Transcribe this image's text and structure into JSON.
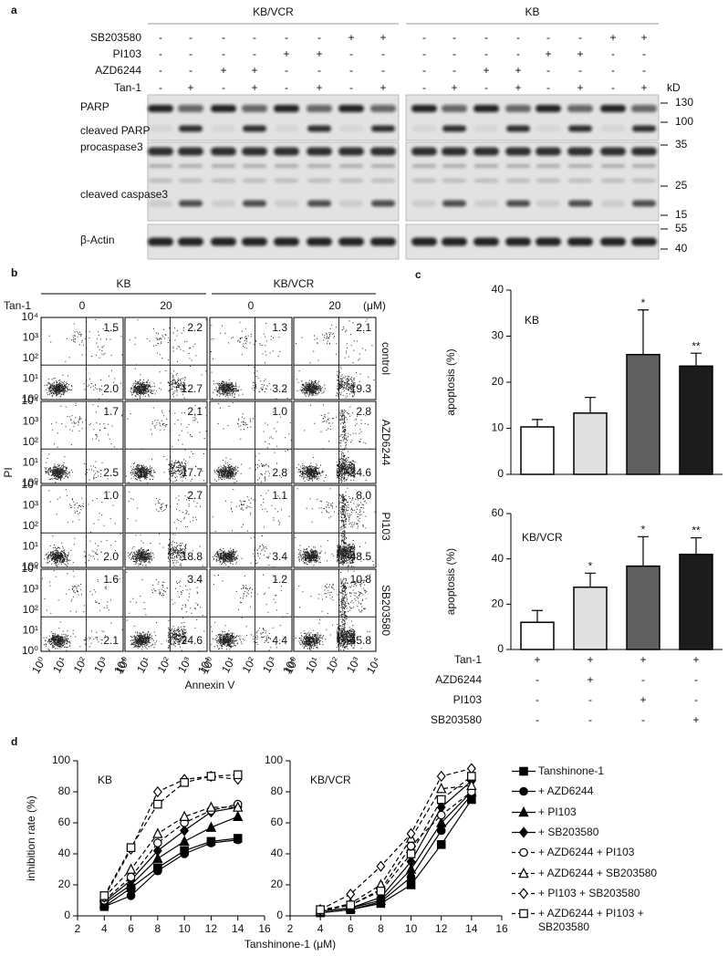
{
  "panel_a": {
    "label": "a",
    "groups": [
      "KB/VCR",
      "KB"
    ],
    "rows": [
      {
        "name": "SB203580",
        "signs": [
          "-",
          "-",
          "-",
          "-",
          "-",
          "-",
          "+",
          "+",
          "-",
          "-",
          "-",
          "-",
          "-",
          "-",
          "+",
          "+"
        ]
      },
      {
        "name": "PI103",
        "signs": [
          "-",
          "-",
          "-",
          "-",
          "+",
          "+",
          "-",
          "-",
          "-",
          "-",
          "-",
          "-",
          "+",
          "+",
          "-",
          "-"
        ]
      },
      {
        "name": "AZD6244",
        "signs": [
          "-",
          "-",
          "+",
          "+",
          "-",
          "-",
          "-",
          "-",
          "-",
          "-",
          "+",
          "+",
          "-",
          "-",
          "-",
          "-"
        ]
      },
      {
        "name": "Tan-1",
        "signs": [
          "-",
          "+",
          "-",
          "+",
          "-",
          "+",
          "-",
          "+",
          "-",
          "+",
          "-",
          "+",
          "-",
          "+",
          "-",
          "+"
        ]
      }
    ],
    "unit": "kD",
    "proteins": [
      "PARP",
      "cleaved PARP",
      "procaspase3",
      "cleaved caspase3",
      "β-Actin"
    ],
    "markers": [
      130,
      100,
      35,
      25,
      15,
      55,
      40
    ]
  },
  "panel_b": {
    "label": "b",
    "groups": [
      "KB",
      "KB/VCR"
    ],
    "treatment": "Tan-1",
    "doses": [
      "0",
      "20",
      "0",
      "20"
    ],
    "unit": "(μM)",
    "conditions": [
      "control",
      "AZD6244",
      "PI103",
      "SB203580"
    ],
    "ylabel": "PI",
    "xlabel": "Annexin V",
    "ticks": [
      "10⁰",
      "10¹",
      "10²",
      "10³",
      "10⁴"
    ],
    "quadrants": [
      [
        {
          "upper_right": "1.5",
          "lower_right": "2.0"
        },
        {
          "upper_right": "2.2",
          "lower_right": "12.7"
        },
        {
          "upper_right": "1.3",
          "lower_right": "3.2"
        },
        {
          "upper_right": "2.1",
          "lower_right": "19.3"
        }
      ],
      [
        {
          "upper_right": "1.7",
          "lower_right": "2.5"
        },
        {
          "upper_right": "2.1",
          "lower_right": "17.7"
        },
        {
          "upper_right": "1.0",
          "lower_right": "2.8"
        },
        {
          "upper_right": "2.8",
          "lower_right": "34.6"
        }
      ],
      [
        {
          "upper_right": "1.0",
          "lower_right": "2.0"
        },
        {
          "upper_right": "2.7",
          "lower_right": "18.8"
        },
        {
          "upper_right": "1.1",
          "lower_right": "3.4"
        },
        {
          "upper_right": "8.0",
          "lower_right": "48.5"
        }
      ],
      [
        {
          "upper_right": "1.6",
          "lower_right": "2.1"
        },
        {
          "upper_right": "3.4",
          "lower_right": "24.6"
        },
        {
          "upper_right": "1.2",
          "lower_right": "4.4"
        },
        {
          "upper_right": "10.8",
          "lower_right": "45.8"
        }
      ]
    ]
  },
  "panel_c": {
    "label": "c"
  },
  "panel_d": {
    "label": "d"
  },
  "chart_data": [
    {
      "type": "bar",
      "title": "KB",
      "ylabel": "apoptosis (%)",
      "values": [
        10.3,
        13.3,
        26,
        23.5
      ],
      "errors": [
        1.6,
        3.4,
        9.7,
        2.8
      ],
      "significance": [
        null,
        null,
        "*",
        "**"
      ],
      "colors": [
        "#ffffff",
        "#e0e0e0",
        "#606060",
        "#1c1c1c"
      ],
      "ylim": [
        0,
        40
      ],
      "yticks": [
        0,
        10,
        20,
        30,
        40
      ]
    },
    {
      "type": "bar",
      "title": "KB/VCR",
      "ylabel": "apoptosis (%)",
      "values": [
        12,
        27.5,
        36.8,
        42
      ],
      "errors": [
        5.2,
        6.2,
        13,
        7.3
      ],
      "significance": [
        null,
        "*",
        "*",
        "**"
      ],
      "colors": [
        "#ffffff",
        "#e0e0e0",
        "#606060",
        "#1c1c1c"
      ],
      "ylim": [
        0,
        60
      ],
      "yticks": [
        0,
        20,
        40,
        60
      ],
      "treatments": [
        {
          "name": "Tan-1",
          "signs": [
            "+",
            "+",
            "+",
            "+"
          ]
        },
        {
          "name": "AZD6244",
          "signs": [
            "-",
            "+",
            "-",
            "-"
          ]
        },
        {
          "name": "PI103",
          "signs": [
            "-",
            "-",
            "+",
            "-"
          ]
        },
        {
          "name": "SB203580",
          "signs": [
            "-",
            "-",
            "-",
            "+"
          ]
        }
      ]
    },
    {
      "type": "line",
      "title": "KB",
      "ylabel": "inhibition rate (%)",
      "xlabel": "Tanshinone-1 (μM)",
      "x": [
        4,
        6,
        8,
        10,
        12,
        14
      ],
      "xlim": [
        2,
        16
      ],
      "xticks": [
        2,
        4,
        6,
        8,
        10,
        12,
        14,
        16
      ],
      "ylim": [
        0,
        100
      ],
      "yticks": [
        0,
        20,
        40,
        60,
        80,
        100
      ],
      "series": [
        {
          "color": "#000000",
          "marker": "square",
          "filled": true,
          "dashed": false,
          "values": [
            6,
            18,
            31,
            42,
            48,
            50
          ]
        },
        {
          "color": "#000000",
          "marker": "circle",
          "filled": true,
          "dashed": false,
          "values": [
            6,
            13,
            29,
            40,
            47,
            49
          ]
        },
        {
          "color": "#000000",
          "marker": "triangle",
          "filled": true,
          "dashed": false,
          "values": [
            8,
            20,
            37,
            48,
            57,
            64
          ]
        },
        {
          "color": "#000000",
          "marker": "diamond",
          "filled": true,
          "dashed": false,
          "values": [
            9,
            23,
            42,
            55,
            67,
            70
          ]
        },
        {
          "color": "#000000",
          "marker": "circle",
          "filled": false,
          "dashed": true,
          "values": [
            10,
            25,
            47,
            60,
            68,
            72
          ]
        },
        {
          "color": "#000000",
          "marker": "triangle",
          "filled": false,
          "dashed": true,
          "values": [
            12,
            30,
            53,
            64,
            70,
            70
          ]
        },
        {
          "color": "#000000",
          "marker": "diamond",
          "filled": false,
          "dashed": true,
          "values": [
            12,
            43,
            80,
            88,
            90,
            88
          ]
        },
        {
          "color": "#000000",
          "marker": "square",
          "filled": false,
          "dashed": true,
          "values": [
            13,
            44,
            72,
            86,
            90,
            91
          ]
        }
      ]
    },
    {
      "type": "line",
      "title": "KB/VCR",
      "legend": "right",
      "x": [
        4,
        6,
        8,
        10,
        12,
        14
      ],
      "xlim": [
        2,
        16
      ],
      "xticks": [
        2,
        4,
        6,
        8,
        10,
        12,
        14,
        16
      ],
      "ylim": [
        0,
        100
      ],
      "yticks": [
        0,
        20,
        40,
        60,
        80,
        100
      ],
      "series": [
        {
          "name": "Tanshinone-1",
          "color": "#000000",
          "marker": "square",
          "filled": true,
          "dashed": false,
          "values": [
            2,
            4,
            8,
            20,
            46,
            75
          ]
        },
        {
          "name": "+ AZD6244",
          "color": "#000000",
          "marker": "circle",
          "filled": true,
          "dashed": false,
          "values": [
            2,
            4,
            9,
            25,
            55,
            78
          ]
        },
        {
          "name": "+ PI103",
          "color": "#000000",
          "marker": "triangle",
          "filled": true,
          "dashed": false,
          "values": [
            3,
            5,
            10,
            30,
            60,
            80
          ]
        },
        {
          "name": "+ SB203580",
          "color": "#000000",
          "marker": "diamond",
          "filled": true,
          "dashed": false,
          "values": [
            3,
            5,
            12,
            35,
            70,
            87
          ]
        },
        {
          "name": "+ AZD6244 + PI103",
          "color": "#000000",
          "marker": "circle",
          "filled": false,
          "dashed": true,
          "values": [
            3,
            7,
            17,
            45,
            65,
            80
          ]
        },
        {
          "name": "+ AZD6244 + SB203580",
          "color": "#000000",
          "marker": "triangle",
          "filled": false,
          "dashed": true,
          "values": [
            3,
            8,
            20,
            50,
            82,
            84
          ]
        },
        {
          "name": "+ PI103 + SB203580",
          "color": "#000000",
          "marker": "diamond",
          "filled": false,
          "dashed": true,
          "values": [
            4,
            14,
            32,
            53,
            90,
            95
          ]
        },
        {
          "name": "+ AZD6244 + PI103 + SB203580",
          "color": "#000000",
          "marker": "square",
          "filled": false,
          "dashed": true,
          "values": [
            4,
            7,
            16,
            40,
            75,
            90
          ]
        }
      ]
    }
  ]
}
